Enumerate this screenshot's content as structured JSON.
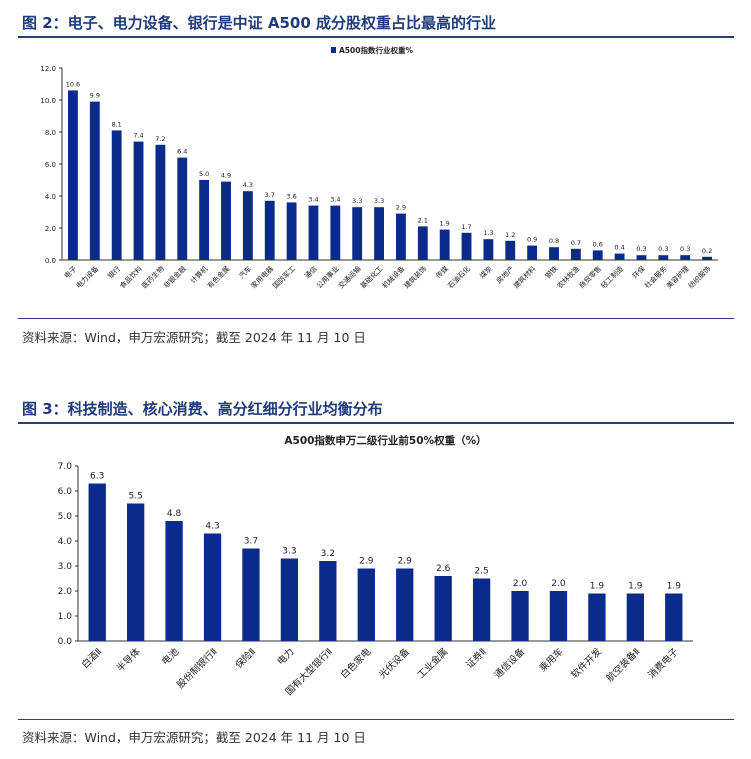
{
  "figure2": {
    "title": "图 2：电子、电力设备、银行是中证 A500 成分股权重占比最高的行业",
    "source": "资料来源：Wind，申万宏源研究；截至 2024 年 11 月 10 日"
  },
  "figure3": {
    "title": "图 3：科技制造、核心消费、高分红细分行业均衡分布",
    "source": "资料来源：Wind，申万宏源研究；截至 2024 年 11 月 10 日"
  },
  "colors": {
    "bar": "#0a2a8c",
    "title": "#1f3b7a"
  },
  "chart_data": [
    {
      "type": "bar",
      "title": "",
      "legend": {
        "label": "A500指数行业权重%",
        "position": "top-center"
      },
      "xlabel": "",
      "ylabel": "",
      "ylim": [
        0,
        12
      ],
      "yticks": [
        "0.0",
        "2.0",
        "4.0",
        "6.0",
        "8.0",
        "10.0",
        "12.0"
      ],
      "categories": [
        "电子",
        "电力设备",
        "银行",
        "食品饮料",
        "医药生物",
        "非银金融",
        "计算机",
        "有色金属",
        "汽车",
        "家用电器",
        "国防军工",
        "通信",
        "公用事业",
        "交通运输",
        "基础化工",
        "机械设备",
        "建筑装饰",
        "传媒",
        "石油石化",
        "煤炭",
        "房地产",
        "建筑材料",
        "钢铁",
        "农林牧渔",
        "商贸零售",
        "轻工制造",
        "环保",
        "社会服务",
        "美容护理",
        "纺织服饰"
      ],
      "values": [
        10.6,
        9.9,
        8.1,
        7.4,
        7.2,
        6.4,
        5.0,
        4.9,
        4.3,
        3.7,
        3.6,
        3.4,
        3.4,
        3.3,
        3.3,
        2.9,
        2.1,
        1.9,
        1.7,
        1.3,
        1.2,
        0.9,
        0.8,
        0.7,
        0.6,
        0.4,
        0.3,
        0.3,
        0.3,
        0.2
      ],
      "labels": [
        "10.6",
        "9.9",
        "8.1",
        "7.4",
        "7.2",
        "6.4",
        "5.0",
        "4.9",
        "4.3",
        "3.7",
        "3.6",
        "3.4",
        "3.4",
        "3.3",
        "3.3",
        "2.9",
        "2.1",
        "1.9",
        "1.7",
        "1.3",
        "1.2",
        "0.9",
        "0.8",
        "0.7",
        "0.6",
        "0.4",
        "0.3",
        "0.3",
        "0.3",
        "0.2"
      ],
      "grid": false
    },
    {
      "type": "bar",
      "title": "A500指数申万二级行业前50%权重（%）",
      "xlabel": "",
      "ylabel": "",
      "ylim": [
        0,
        7
      ],
      "yticks": [
        "0.0",
        "1.0",
        "2.0",
        "3.0",
        "4.0",
        "5.0",
        "6.0",
        "7.0"
      ],
      "categories": [
        "白酒Ⅱ",
        "半导体",
        "电池",
        "股份制银行Ⅱ",
        "保险Ⅱ",
        "电力",
        "国有大型银行Ⅱ",
        "白色家电",
        "光伏设备",
        "工业金属",
        "证券Ⅱ",
        "通信设备",
        "乘用车",
        "软件开发",
        "航空装备Ⅱ",
        "消费电子"
      ],
      "values": [
        6.3,
        5.5,
        4.8,
        4.3,
        3.7,
        3.3,
        3.2,
        2.9,
        2.9,
        2.6,
        2.5,
        2.0,
        2.0,
        1.9,
        1.9,
        1.9
      ],
      "labels": [
        "6.3",
        "5.5",
        "4.8",
        "4.3",
        "3.7",
        "3.3",
        "3.2",
        "2.9",
        "2.9",
        "2.6",
        "2.5",
        "2.0",
        "2.0",
        "1.9",
        "1.9",
        "1.9"
      ],
      "grid": false
    }
  ]
}
